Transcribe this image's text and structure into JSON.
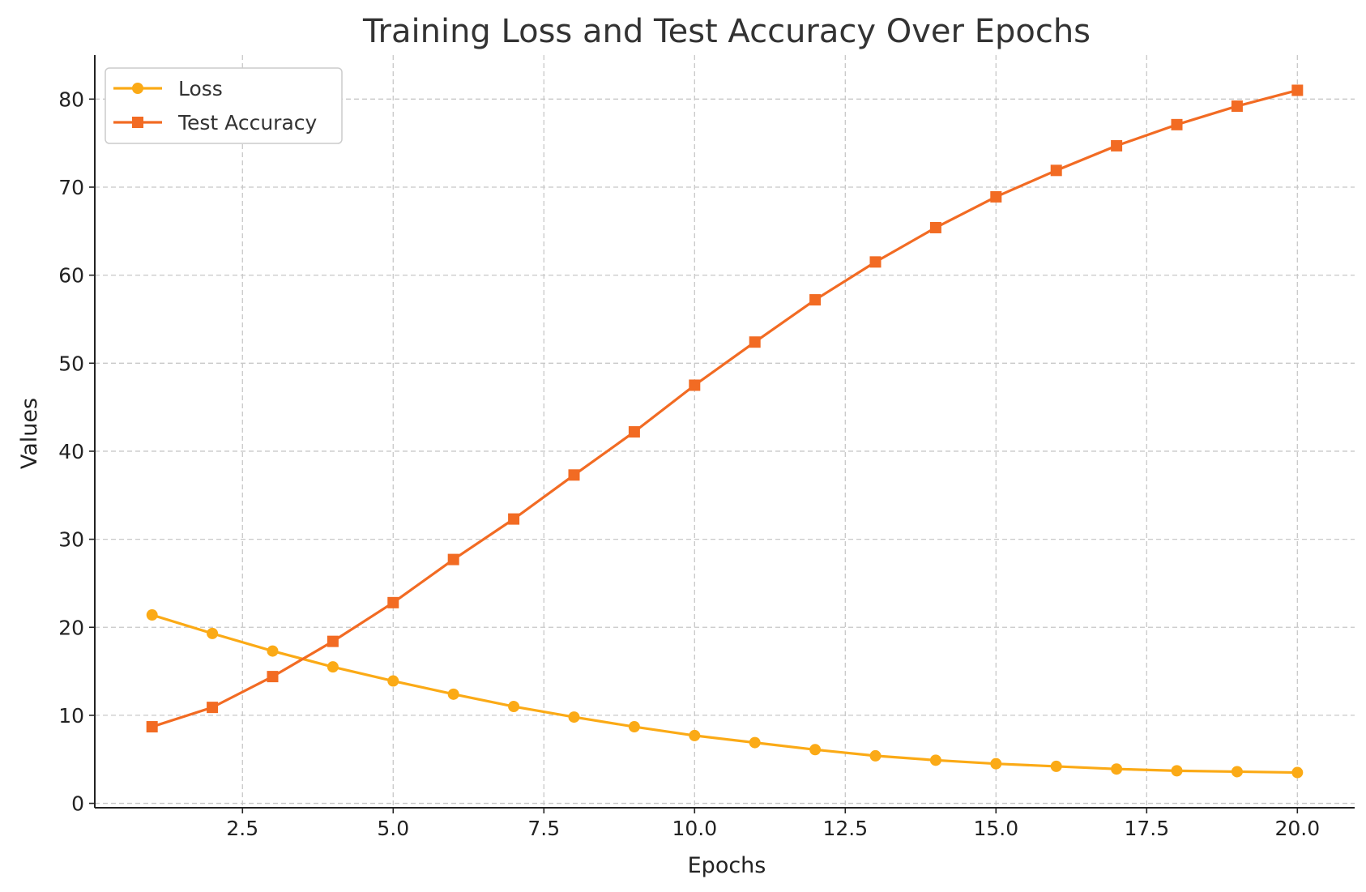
{
  "chart_data": {
    "type": "line",
    "title": "Training Loss and Test Accuracy Over Epochs",
    "xlabel": "Epochs",
    "ylabel": "Values",
    "xlim": [
      0.05,
      20.95
    ],
    "ylim": [
      -0.5,
      85
    ],
    "xticks": [
      2.5,
      5.0,
      7.5,
      10.0,
      12.5,
      15.0,
      17.5,
      20.0
    ],
    "xtick_labels": [
      "2.5",
      "5.0",
      "7.5",
      "10.0",
      "12.5",
      "15.0",
      "17.5",
      "20.0"
    ],
    "yticks": [
      0,
      10,
      20,
      30,
      40,
      50,
      60,
      70,
      80
    ],
    "ytick_labels": [
      "0",
      "10",
      "20",
      "30",
      "40",
      "50",
      "60",
      "70",
      "80"
    ],
    "grid": true,
    "legend_position": "top-left",
    "x": [
      1,
      2,
      3,
      4,
      5,
      6,
      7,
      8,
      9,
      10,
      11,
      12,
      13,
      14,
      15,
      16,
      17,
      18,
      19,
      20
    ],
    "series": [
      {
        "name": "Loss",
        "marker": "circle",
        "color": "#FBAA16",
        "values": [
          21.4,
          19.3,
          17.3,
          15.5,
          13.9,
          12.4,
          11.0,
          9.8,
          8.7,
          7.7,
          6.9,
          6.1,
          5.4,
          4.9,
          4.5,
          4.2,
          3.9,
          3.7,
          3.6,
          3.5
        ]
      },
      {
        "name": "Test Accuracy",
        "marker": "square",
        "color": "#F26B23",
        "values": [
          8.7,
          10.9,
          14.4,
          18.4,
          22.8,
          27.7,
          32.3,
          37.3,
          42.2,
          47.5,
          52.4,
          57.2,
          61.5,
          65.4,
          68.9,
          71.9,
          74.7,
          77.1,
          79.2,
          81.0
        ]
      }
    ]
  }
}
